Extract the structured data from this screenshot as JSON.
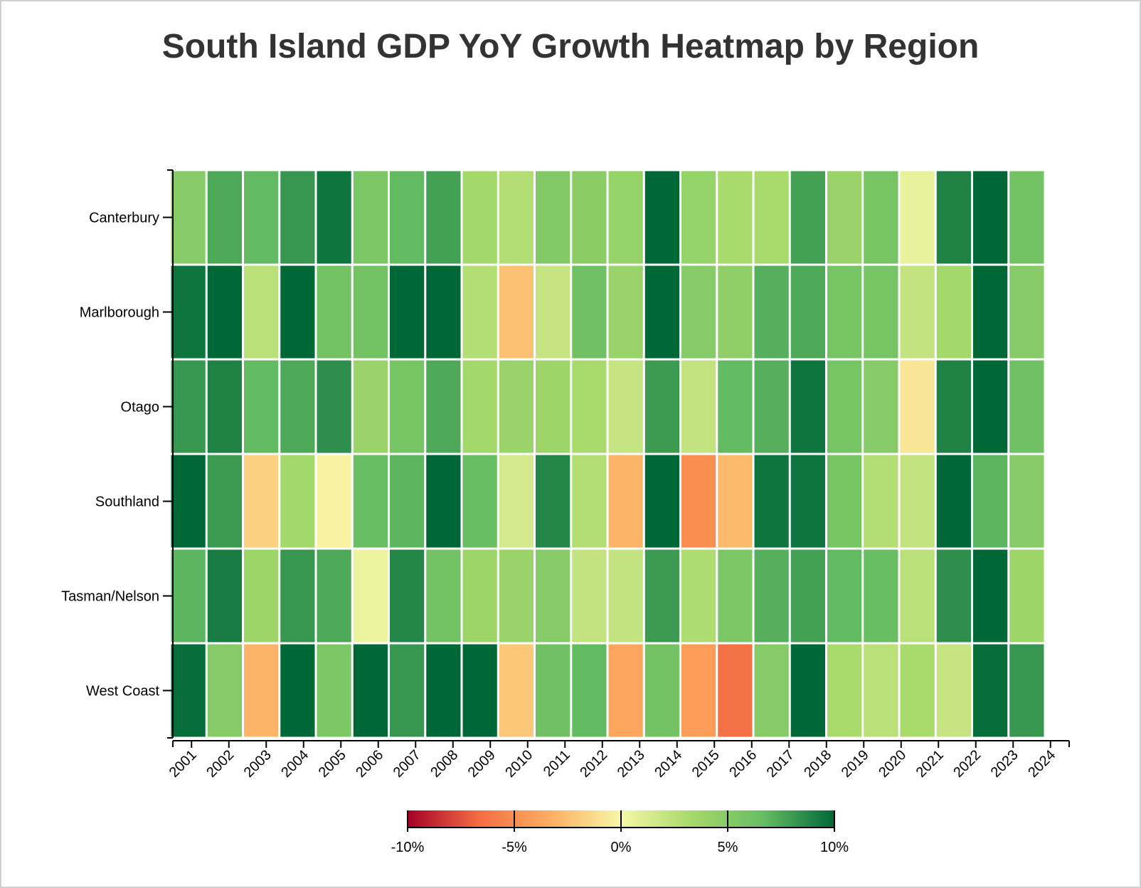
{
  "colors": {
    "scale": [
      "#a50026",
      "#f46d43",
      "#fdae61",
      "#f7f7a7",
      "#a6d96a",
      "#66bd63",
      "#006837"
    ],
    "axis": "#000000",
    "title": "#333333"
  },
  "chart_data": {
    "type": "heatmap",
    "title": "South Island GDP YoY Growth Heatmap by Region",
    "xlabel": "",
    "ylabel": "",
    "x": [
      "2001",
      "2002",
      "2003",
      "2004",
      "2005",
      "2006",
      "2007",
      "2008",
      "2009",
      "2010",
      "2011",
      "2012",
      "2013",
      "2014",
      "2015",
      "2016",
      "2017",
      "2018",
      "2019",
      "2020",
      "2021",
      "2022",
      "2023",
      "2024"
    ],
    "y": [
      "Canterbury",
      "Marlborough",
      "Otago",
      "Southland",
      "Tasman/Nelson",
      "West Coast"
    ],
    "values": [
      [
        5.0,
        7.5,
        6.8,
        8.2,
        9.5,
        5.5,
        6.8,
        7.8,
        3.5,
        2.8,
        5.2,
        4.8,
        4.2,
        10.0,
        4.2,
        3.2,
        3.2,
        7.8,
        4.0,
        5.8,
        0.6,
        9.0,
        10.0,
        6.0
      ],
      [
        9.5,
        10.0,
        2.5,
        10.0,
        6.0,
        6.0,
        10.0,
        10.0,
        2.8,
        -2.5,
        2.0,
        6.2,
        4.0,
        10.0,
        5.0,
        4.5,
        7.2,
        7.5,
        5.8,
        5.8,
        2.2,
        3.5,
        10.0,
        5.0
      ],
      [
        8.2,
        9.0,
        6.8,
        7.5,
        8.5,
        4.0,
        5.8,
        7.5,
        3.5,
        4.0,
        3.8,
        3.2,
        2.0,
        8.0,
        2.2,
        6.8,
        7.2,
        9.5,
        5.8,
        5.0,
        -0.8,
        9.0,
        10.0,
        6.2
      ],
      [
        10.0,
        8.0,
        -1.8,
        3.5,
        -0.2,
        6.5,
        7.0,
        10.0,
        6.5,
        1.5,
        8.8,
        2.8,
        -3.0,
        10.0,
        -5.0,
        -2.8,
        9.5,
        9.5,
        5.8,
        2.8,
        2.2,
        10.0,
        7.0,
        5.0
      ],
      [
        7.0,
        9.2,
        3.8,
        8.2,
        7.5,
        0.5,
        8.8,
        6.0,
        3.8,
        4.0,
        5.0,
        2.2,
        2.2,
        8.0,
        3.0,
        5.5,
        7.2,
        7.8,
        6.8,
        6.5,
        2.5,
        8.5,
        10.0,
        3.8
      ],
      [
        9.8,
        5.0,
        -3.0,
        10.0,
        5.5,
        10.0,
        8.2,
        10.0,
        10.0,
        -2.2,
        6.2,
        6.8,
        -3.8,
        6.0,
        -4.2,
        -6.5,
        5.0,
        10.0,
        3.2,
        2.5,
        3.2,
        2.0,
        9.8,
        8.2
      ]
    ],
    "colorbar": {
      "range": [
        -10,
        10
      ],
      "ticks": [
        "-10%",
        "-5%",
        "0%",
        "5%",
        "10%"
      ]
    }
  }
}
